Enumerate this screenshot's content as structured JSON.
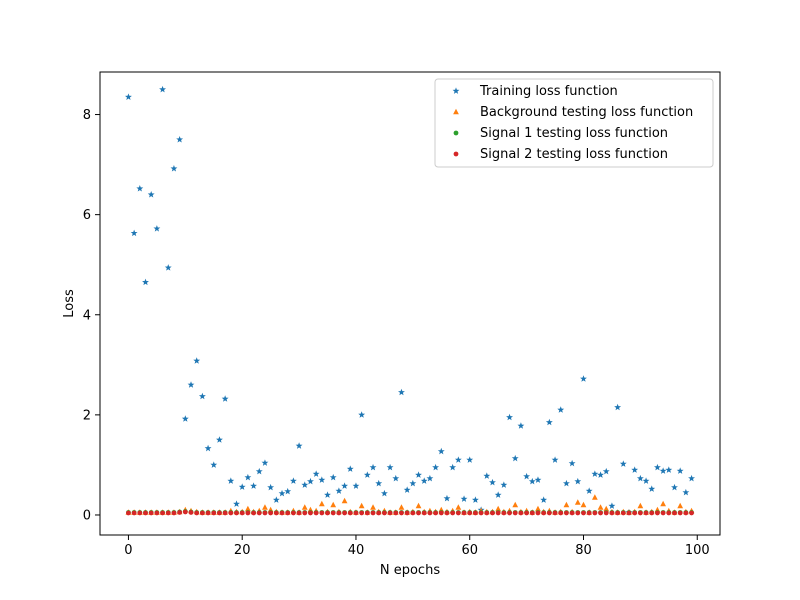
{
  "chart_data": {
    "type": "scatter",
    "title": "",
    "xlabel": "N epochs",
    "ylabel": "Loss",
    "xlim": [
      -5,
      104
    ],
    "ylim": [
      -0.4,
      8.85
    ],
    "xticks": [
      0,
      20,
      40,
      60,
      80,
      100
    ],
    "yticks": [
      0,
      2,
      4,
      6,
      8
    ],
    "grid": false,
    "legend_position": "top-right",
    "series": [
      {
        "name": "Training loss function",
        "color": "#1f77b4",
        "marker": "star",
        "x": [
          0,
          1,
          2,
          3,
          4,
          5,
          6,
          7,
          8,
          9,
          10,
          11,
          12,
          13,
          14,
          15,
          16,
          17,
          18,
          19,
          20,
          21,
          22,
          23,
          24,
          25,
          26,
          27,
          28,
          29,
          30,
          31,
          32,
          33,
          34,
          35,
          36,
          37,
          38,
          39,
          40,
          41,
          42,
          43,
          44,
          45,
          46,
          47,
          48,
          49,
          50,
          51,
          52,
          53,
          54,
          55,
          56,
          57,
          58,
          59,
          60,
          61,
          62,
          63,
          64,
          65,
          66,
          67,
          68,
          69,
          70,
          71,
          72,
          73,
          74,
          75,
          76,
          77,
          78,
          79,
          80,
          81,
          82,
          83,
          84,
          85,
          86,
          87,
          88,
          89,
          90,
          91,
          92,
          93,
          94,
          95,
          96,
          97,
          98,
          99
        ],
        "y": [
          8.35,
          5.63,
          6.52,
          4.65,
          6.4,
          5.72,
          8.5,
          4.94,
          6.92,
          7.5,
          1.92,
          2.6,
          3.08,
          2.37,
          1.33,
          1.0,
          1.5,
          2.32,
          0.68,
          0.22,
          0.56,
          0.75,
          0.58,
          0.87,
          1.04,
          0.55,
          0.3,
          0.43,
          0.47,
          0.68,
          1.38,
          0.6,
          0.67,
          0.82,
          0.7,
          0.4,
          0.75,
          0.48,
          0.58,
          0.92,
          0.58,
          2.0,
          0.8,
          0.95,
          0.63,
          0.43,
          0.95,
          0.73,
          2.45,
          0.5,
          0.63,
          0.8,
          0.68,
          0.73,
          0.95,
          1.27,
          0.33,
          0.95,
          1.1,
          0.32,
          1.1,
          0.3,
          0.1,
          0.78,
          0.65,
          0.4,
          0.6,
          1.95,
          1.13,
          1.78,
          0.77,
          0.67,
          0.7,
          0.3,
          1.85,
          1.1,
          2.1,
          0.63,
          1.03,
          0.67,
          2.72,
          0.48,
          0.82,
          0.8,
          0.87,
          0.18,
          2.15,
          1.02,
          0.05,
          0.9,
          0.73,
          0.68,
          0.52,
          0.95,
          0.88,
          0.9,
          0.55,
          0.88,
          0.45,
          0.73
        ]
      },
      {
        "name": "Background testing loss function",
        "color": "#ff7f0e",
        "marker": "triangle",
        "x": [
          0,
          1,
          2,
          3,
          4,
          5,
          6,
          7,
          8,
          9,
          10,
          11,
          12,
          13,
          14,
          15,
          16,
          17,
          18,
          19,
          20,
          21,
          22,
          23,
          24,
          25,
          26,
          27,
          28,
          29,
          30,
          31,
          32,
          33,
          34,
          35,
          36,
          37,
          38,
          39,
          40,
          41,
          42,
          43,
          44,
          45,
          46,
          47,
          48,
          49,
          50,
          51,
          52,
          53,
          54,
          55,
          56,
          57,
          58,
          59,
          60,
          61,
          62,
          63,
          64,
          65,
          66,
          67,
          68,
          69,
          70,
          71,
          72,
          73,
          74,
          75,
          76,
          77,
          78,
          79,
          80,
          81,
          82,
          83,
          84,
          85,
          86,
          87,
          88,
          89,
          90,
          91,
          92,
          93,
          94,
          95,
          96,
          97,
          98,
          99
        ],
        "y": [
          0.05,
          0.05,
          0.05,
          0.05,
          0.05,
          0.05,
          0.05,
          0.05,
          0.05,
          0.06,
          0.1,
          0.08,
          0.06,
          0.05,
          0.05,
          0.05,
          0.05,
          0.05,
          0.08,
          0.06,
          0.06,
          0.12,
          0.06,
          0.08,
          0.15,
          0.1,
          0.06,
          0.05,
          0.05,
          0.08,
          0.05,
          0.15,
          0.1,
          0.08,
          0.22,
          0.06,
          0.2,
          0.06,
          0.28,
          0.06,
          0.05,
          0.18,
          0.05,
          0.15,
          0.06,
          0.08,
          0.05,
          0.05,
          0.15,
          0.05,
          0.06,
          0.18,
          0.06,
          0.08,
          0.06,
          0.1,
          0.06,
          0.08,
          0.15,
          0.05,
          0.06,
          0.05,
          0.08,
          0.06,
          0.06,
          0.12,
          0.06,
          0.08,
          0.2,
          0.06,
          0.08,
          0.05,
          0.12,
          0.06,
          0.08,
          0.05,
          0.06,
          0.2,
          0.06,
          0.25,
          0.2,
          0.05,
          0.35,
          0.15,
          0.12,
          0.06,
          0.05,
          0.06,
          0.05,
          0.06,
          0.18,
          0.05,
          0.06,
          0.1,
          0.22,
          0.08,
          0.05,
          0.18,
          0.06,
          0.08
        ]
      },
      {
        "name": "Signal 1 testing loss function",
        "color": "#2ca02c",
        "marker": "circle",
        "x": [
          0,
          1,
          2,
          3,
          4,
          5,
          6,
          7,
          8,
          9,
          10,
          11,
          12,
          13,
          14,
          15,
          16,
          17,
          18,
          19,
          20,
          21,
          22,
          23,
          24,
          25,
          26,
          27,
          28,
          29,
          30,
          31,
          32,
          33,
          34,
          35,
          36,
          37,
          38,
          39,
          40,
          41,
          42,
          43,
          44,
          45,
          46,
          47,
          48,
          49,
          50,
          51,
          52,
          53,
          54,
          55,
          56,
          57,
          58,
          59,
          60,
          61,
          62,
          63,
          64,
          65,
          66,
          67,
          68,
          69,
          70,
          71,
          72,
          73,
          74,
          75,
          76,
          77,
          78,
          79,
          80,
          81,
          82,
          83,
          84,
          85,
          86,
          87,
          88,
          89,
          90,
          91,
          92,
          93,
          94,
          95,
          96,
          97,
          98,
          99
        ],
        "y": [
          0.05,
          0.05,
          0.05,
          0.05,
          0.05,
          0.05,
          0.05,
          0.05,
          0.05,
          0.06,
          0.07,
          0.06,
          0.05,
          0.05,
          0.05,
          0.05,
          0.05,
          0.05,
          0.05,
          0.05,
          0.05,
          0.05,
          0.05,
          0.05,
          0.05,
          0.05,
          0.05,
          0.05,
          0.05,
          0.05,
          0.05,
          0.05,
          0.05,
          0.05,
          0.05,
          0.05,
          0.05,
          0.05,
          0.05,
          0.05,
          0.05,
          0.05,
          0.05,
          0.05,
          0.05,
          0.05,
          0.05,
          0.05,
          0.05,
          0.05,
          0.05,
          0.05,
          0.05,
          0.05,
          0.05,
          0.05,
          0.05,
          0.05,
          0.05,
          0.05,
          0.05,
          0.05,
          0.05,
          0.05,
          0.05,
          0.05,
          0.05,
          0.05,
          0.05,
          0.05,
          0.05,
          0.05,
          0.05,
          0.05,
          0.05,
          0.05,
          0.05,
          0.05,
          0.05,
          0.05,
          0.05,
          0.05,
          0.05,
          0.05,
          0.05,
          0.05,
          0.05,
          0.05,
          0.05,
          0.05,
          0.05,
          0.05,
          0.05,
          0.05,
          0.05,
          0.05,
          0.05,
          0.05,
          0.05,
          0.05
        ]
      },
      {
        "name": "Signal 2 testing loss function",
        "color": "#d62728",
        "marker": "circle",
        "x": [
          0,
          1,
          2,
          3,
          4,
          5,
          6,
          7,
          8,
          9,
          10,
          11,
          12,
          13,
          14,
          15,
          16,
          17,
          18,
          19,
          20,
          21,
          22,
          23,
          24,
          25,
          26,
          27,
          28,
          29,
          30,
          31,
          32,
          33,
          34,
          35,
          36,
          37,
          38,
          39,
          40,
          41,
          42,
          43,
          44,
          45,
          46,
          47,
          48,
          49,
          50,
          51,
          52,
          53,
          54,
          55,
          56,
          57,
          58,
          59,
          60,
          61,
          62,
          63,
          64,
          65,
          66,
          67,
          68,
          69,
          70,
          71,
          72,
          73,
          74,
          75,
          76,
          77,
          78,
          79,
          80,
          81,
          82,
          83,
          84,
          85,
          86,
          87,
          88,
          89,
          90,
          91,
          92,
          93,
          94,
          95,
          96,
          97,
          98,
          99
        ],
        "y": [
          0.04,
          0.04,
          0.04,
          0.04,
          0.04,
          0.04,
          0.04,
          0.04,
          0.04,
          0.05,
          0.06,
          0.05,
          0.04,
          0.04,
          0.04,
          0.04,
          0.04,
          0.04,
          0.04,
          0.04,
          0.04,
          0.04,
          0.04,
          0.04,
          0.04,
          0.04,
          0.04,
          0.04,
          0.04,
          0.04,
          0.04,
          0.04,
          0.04,
          0.04,
          0.04,
          0.04,
          0.04,
          0.04,
          0.04,
          0.04,
          0.04,
          0.04,
          0.04,
          0.04,
          0.04,
          0.04,
          0.04,
          0.04,
          0.04,
          0.04,
          0.04,
          0.04,
          0.04,
          0.04,
          0.04,
          0.04,
          0.04,
          0.04,
          0.04,
          0.04,
          0.04,
          0.04,
          0.04,
          0.04,
          0.04,
          0.04,
          0.04,
          0.04,
          0.04,
          0.04,
          0.04,
          0.04,
          0.04,
          0.04,
          0.04,
          0.04,
          0.04,
          0.04,
          0.04,
          0.04,
          0.04,
          0.04,
          0.04,
          0.04,
          0.04,
          0.04,
          0.04,
          0.04,
          0.04,
          0.04,
          0.04,
          0.04,
          0.04,
          0.04,
          0.04,
          0.04,
          0.04,
          0.04,
          0.04,
          0.04
        ]
      }
    ]
  }
}
